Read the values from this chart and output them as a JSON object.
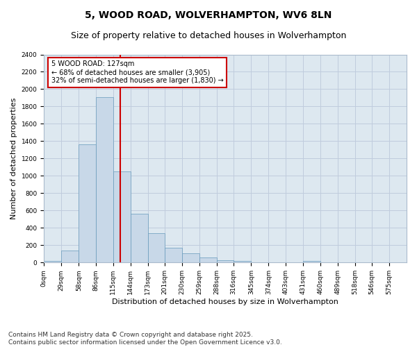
{
  "title": "5, WOOD ROAD, WOLVERHAMPTON, WV6 8LN",
  "subtitle": "Size of property relative to detached houses in Wolverhampton",
  "xlabel": "Distribution of detached houses by size in Wolverhampton",
  "ylabel": "Number of detached properties",
  "bin_labels": [
    "0sqm",
    "29sqm",
    "58sqm",
    "86sqm",
    "115sqm",
    "144sqm",
    "173sqm",
    "201sqm",
    "230sqm",
    "259sqm",
    "288sqm",
    "316sqm",
    "345sqm",
    "374sqm",
    "403sqm",
    "431sqm",
    "460sqm",
    "489sqm",
    "518sqm",
    "546sqm",
    "575sqm"
  ],
  "bar_heights": [
    15,
    135,
    1360,
    1910,
    1055,
    560,
    335,
    170,
    110,
    60,
    30,
    20,
    5,
    5,
    0,
    20,
    0,
    0,
    0,
    5,
    0
  ],
  "bar_color": "#c8d8e8",
  "bar_edge_color": "#6699bb",
  "grid_color": "#c0ccdd",
  "background_color": "#dde8f0",
  "fig_background_color": "#ffffff",
  "annotation_text": "5 WOOD ROAD: 127sqm\n← 68% of detached houses are smaller (3,905)\n32% of semi-detached houses are larger (1,830) →",
  "annotation_box_color": "#ffffff",
  "annotation_box_edge_color": "#cc0000",
  "vline_x": 127,
  "vline_color": "#cc0000",
  "ylim": [
    0,
    2400
  ],
  "yticks": [
    0,
    200,
    400,
    600,
    800,
    1000,
    1200,
    1400,
    1600,
    1800,
    2000,
    2200,
    2400
  ],
  "bin_edges": [
    0,
    29,
    58,
    86,
    115,
    144,
    173,
    201,
    230,
    259,
    288,
    316,
    345,
    374,
    403,
    431,
    460,
    489,
    518,
    546,
    575,
    604
  ],
  "footer_text": "Contains HM Land Registry data © Crown copyright and database right 2025.\nContains public sector information licensed under the Open Government Licence v3.0.",
  "title_fontsize": 10,
  "subtitle_fontsize": 9,
  "tick_fontsize": 6.5,
  "label_fontsize": 8,
  "footer_fontsize": 6.5
}
